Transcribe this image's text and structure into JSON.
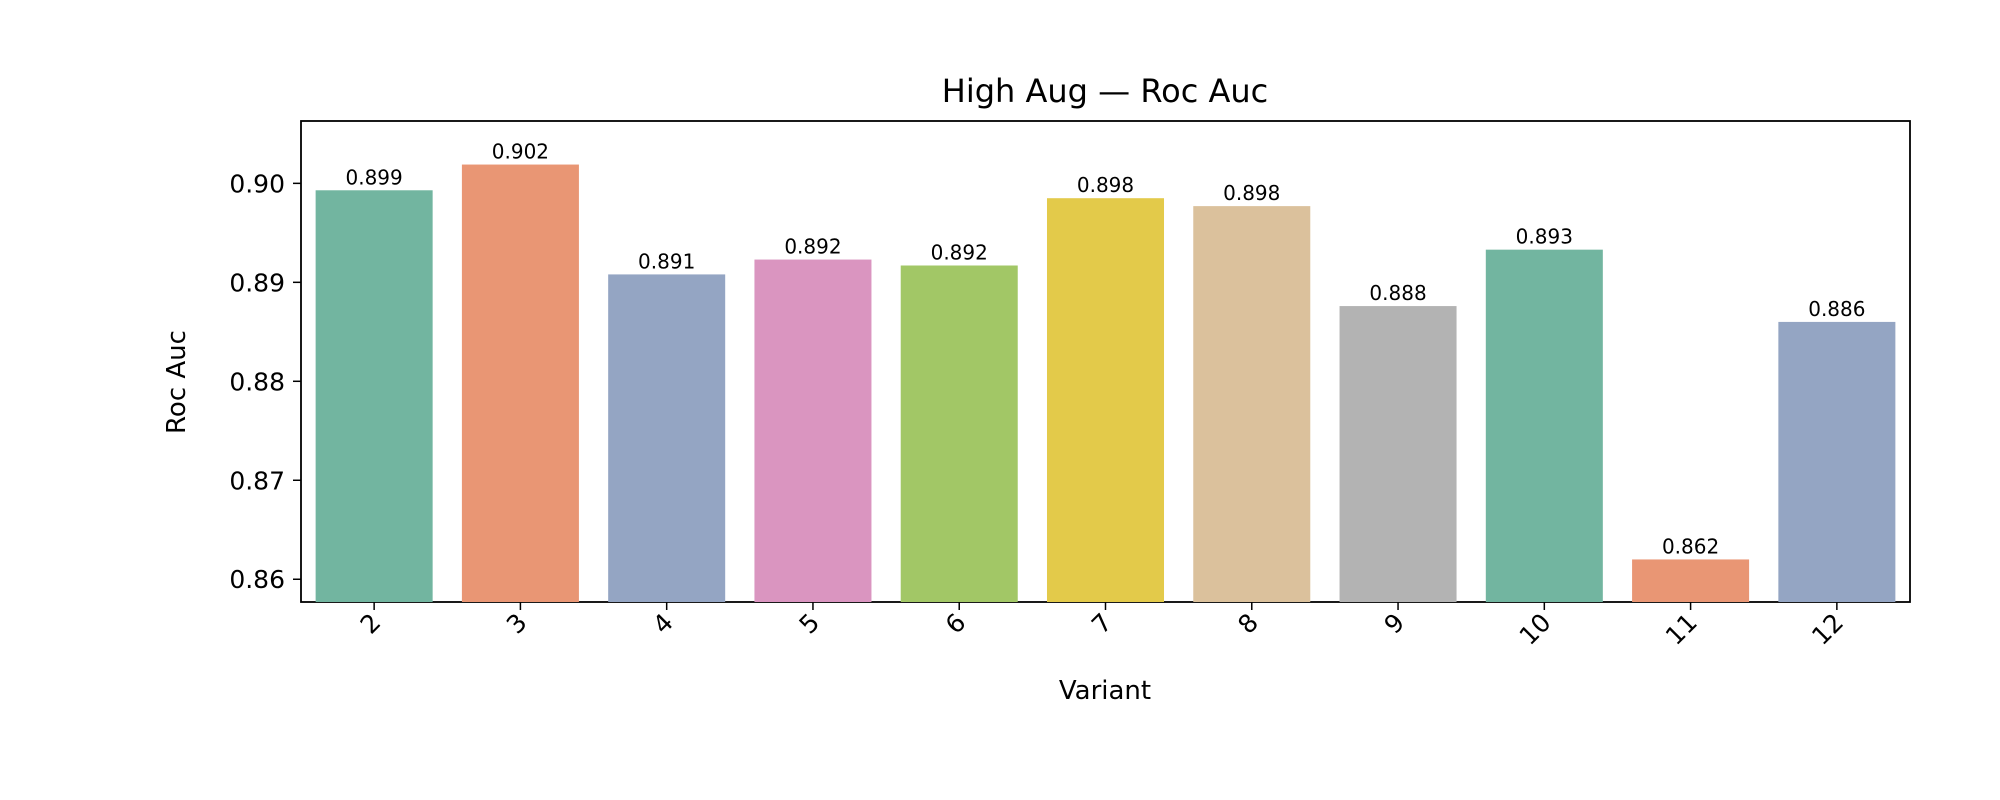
{
  "chart_data": {
    "type": "bar",
    "title": "High Aug — Roc Auc",
    "xlabel": "Variant",
    "ylabel": "Roc Auc",
    "categories": [
      "2",
      "3",
      "4",
      "5",
      "6",
      "7",
      "8",
      "9",
      "10",
      "11",
      "12"
    ],
    "values": [
      0.8993,
      0.9019,
      0.8908,
      0.8923,
      0.8917,
      0.8985,
      0.8977,
      0.8876,
      0.8933,
      0.862,
      0.886
    ],
    "data_labels": [
      "0.899",
      "0.902",
      "0.891",
      "0.892",
      "0.892",
      "0.898",
      "0.898",
      "0.888",
      "0.893",
      "0.862",
      "0.886"
    ],
    "colors": [
      "#72b5a0",
      "#e99674",
      "#94a5c3",
      "#da95c0",
      "#a2c766",
      "#e3ca4a",
      "#dbc19c",
      "#b3b3b3",
      "#72b5a0",
      "#e99674",
      "#94a5c3"
    ],
    "ylim": [
      0.8577,
      0.9063
    ],
    "yticks": [
      0.86,
      0.87,
      0.88,
      0.89,
      0.9
    ],
    "ytick_labels": [
      "0.86",
      "0.87",
      "0.88",
      "0.89",
      "0.90"
    ],
    "grid": false,
    "legend": "none"
  }
}
